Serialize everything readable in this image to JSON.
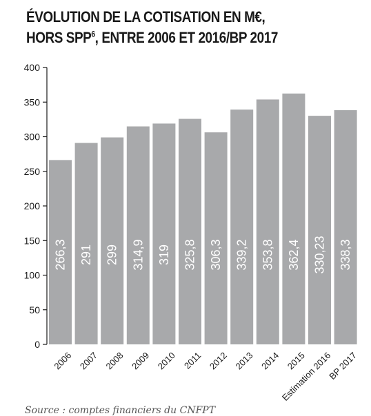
{
  "title": {
    "line1": "ÉVOLUTION DE LA COTISATION EN M€,",
    "line2_before": "HORS SPP",
    "line2_sup": "6",
    "line2_after": ", ENTRE 2006 ET 2016/BP 2017"
  },
  "source": "Source : comptes financiers du CNFPT",
  "colors": {
    "bar": "#a8a9ab",
    "label": "#ffffff",
    "axis": "#1a1a1a"
  },
  "chart_data": {
    "type": "bar",
    "categories": [
      "2006",
      "2007",
      "2008",
      "2009",
      "2010",
      "2011",
      "2012",
      "2013",
      "2014",
      "2015",
      "Estimation 2016",
      "BP 2017"
    ],
    "values": [
      266.3,
      291,
      299,
      314.9,
      319,
      325.8,
      306.3,
      339.2,
      353.8,
      362.4,
      330.23,
      338.3
    ],
    "value_labels": [
      "266,3",
      "291",
      "299",
      "314,9",
      "319",
      "325,8",
      "306,3",
      "339,2",
      "353,8",
      "362,4",
      "330,23",
      "338,3"
    ],
    "ylim": [
      0,
      400
    ],
    "yticks": [
      0,
      50,
      100,
      150,
      200,
      250,
      300,
      350,
      400
    ],
    "grid": false,
    "legend": "none"
  }
}
